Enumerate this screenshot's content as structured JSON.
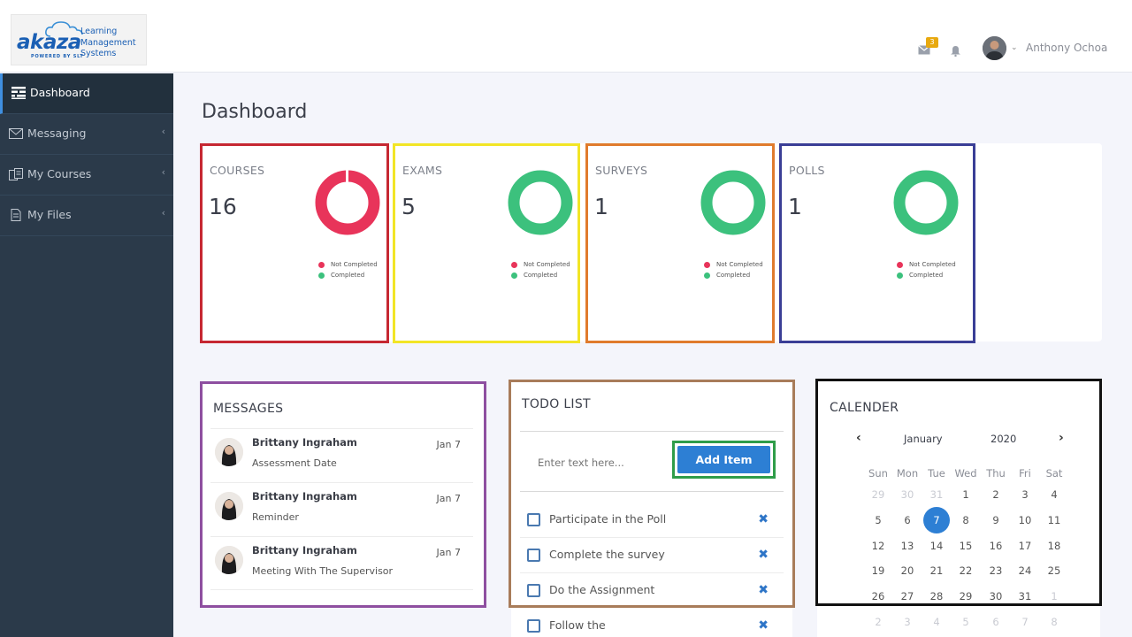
{
  "header": {
    "logo": {
      "brand": "akaza",
      "powered": "POWERED BY SLT",
      "lines": [
        "Learning",
        "Management",
        "Systems"
      ]
    },
    "mail_badge": "3",
    "user_name": "Anthony Ochoa",
    "icons": [
      "mail-icon",
      "bell-icon",
      "avatar",
      "chevron-down-icon"
    ]
  },
  "sidebar": {
    "items": [
      {
        "label": "Dashboard",
        "icon": "dashboard-icon",
        "active": true
      },
      {
        "label": "Messaging",
        "icon": "envelope-icon"
      },
      {
        "label": "My Courses",
        "icon": "courses-icon"
      },
      {
        "label": "My Files",
        "icon": "file-icon"
      }
    ]
  },
  "main": {
    "title": "Dashboard"
  },
  "stats": [
    {
      "title": "COURSES",
      "count": "16",
      "border": "#c62832",
      "completed_fraction": 0.0,
      "legend": [
        "Not Completed",
        "Completed"
      ]
    },
    {
      "title": "EXAMS",
      "count": "5",
      "border": "#f2e526",
      "completed_fraction": 1.0,
      "legend": [
        "Not Completed",
        "Completed"
      ]
    },
    {
      "title": "SURVEYS",
      "count": "1",
      "border": "#e07b2c",
      "completed_fraction": 1.0,
      "legend": [
        "Not Completed",
        "Completed"
      ]
    },
    {
      "title": "POLLS",
      "count": "1",
      "border": "#3a3e96",
      "completed_fraction": 1.0,
      "legend": [
        "Not Completed",
        "Completed"
      ]
    }
  ],
  "colors": {
    "not_completed": "#e8345a",
    "completed": "#3cc17d",
    "accent": "#2d7fd4"
  },
  "messages": {
    "title": "MESSAGES",
    "items": [
      {
        "name": "Brittany Ingraham",
        "subject": "Assessment Date",
        "date": "Jan 7"
      },
      {
        "name": "Brittany Ingraham",
        "subject": "Reminder",
        "date": "Jan 7"
      },
      {
        "name": "Brittany Ingraham",
        "subject": "Meeting With The Supervisor",
        "date": "Jan 7"
      }
    ]
  },
  "todo": {
    "title": "TODO LIST",
    "placeholder": "Enter text here...",
    "add_label": "Add Item",
    "items": [
      {
        "text": "Participate in the Poll"
      },
      {
        "text": "Complete the survey"
      },
      {
        "text": "Do the Assignment"
      },
      {
        "text": "Follow the"
      }
    ]
  },
  "calendar": {
    "title": "CALENDER",
    "month": "January",
    "year": "2020",
    "prev": "‹",
    "next": "›",
    "weekdays": [
      "Sun",
      "Mon",
      "Tue",
      "Wed",
      "Thu",
      "Fri",
      "Sat"
    ],
    "weeks": [
      [
        "29",
        "30",
        "31",
        "1",
        "2",
        "3",
        "4"
      ],
      [
        "5",
        "6",
        "7",
        "8",
        "9",
        "10",
        "11"
      ],
      [
        "12",
        "13",
        "14",
        "15",
        "16",
        "17",
        "18"
      ],
      [
        "19",
        "20",
        "21",
        "22",
        "23",
        "24",
        "25"
      ],
      [
        "26",
        "27",
        "28",
        "29",
        "30",
        "31",
        "1"
      ],
      [
        "2",
        "3",
        "4",
        "5",
        "6",
        "7",
        "8"
      ]
    ],
    "muted": [
      [
        0,
        0
      ],
      [
        0,
        1
      ],
      [
        0,
        2
      ],
      [
        4,
        6
      ],
      [
        5,
        0
      ],
      [
        5,
        1
      ],
      [
        5,
        2
      ],
      [
        5,
        3
      ],
      [
        5,
        4
      ],
      [
        5,
        5
      ],
      [
        5,
        6
      ]
    ],
    "selected": "7"
  }
}
